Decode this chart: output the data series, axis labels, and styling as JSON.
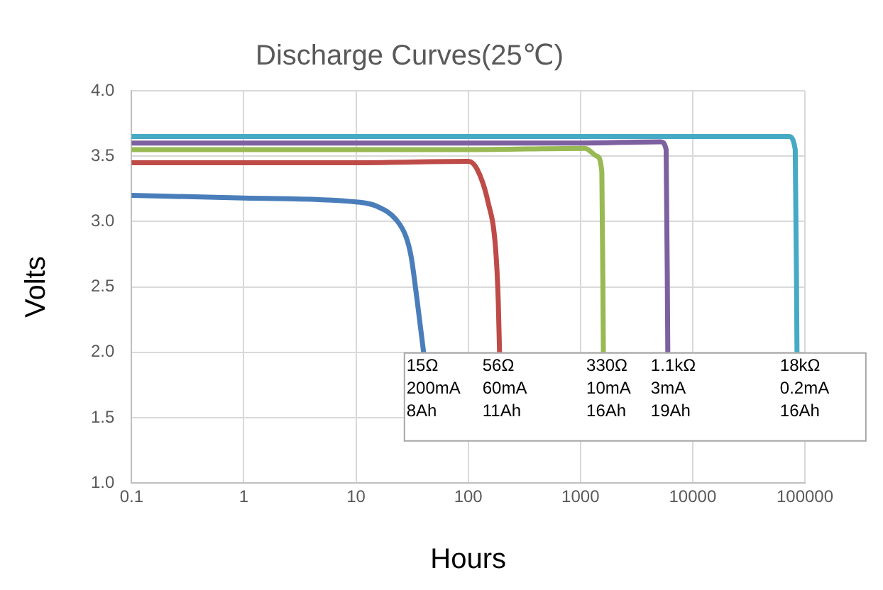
{
  "chart_data": {
    "type": "line",
    "title": "Discharge Curves(25℃)",
    "xlabel": "Hours",
    "ylabel": "Volts",
    "log": "x",
    "grid": true,
    "legend": false,
    "marker": "none",
    "line_style": "solid",
    "xlim": [
      0.1,
      100000
    ],
    "xticks": [
      0.1,
      1,
      10,
      100,
      1000,
      10000,
      100000
    ],
    "ylim": [
      1.0,
      4.0
    ],
    "yticks": [
      {
        "value": 1.0,
        "label": "1.0"
      },
      {
        "value": 1.5,
        "label": "1.5"
      },
      {
        "value": 2.0,
        "label": "2.0"
      },
      {
        "value": 2.5,
        "label": "2.5"
      },
      {
        "value": 3.0,
        "label": "3.0"
      },
      {
        "value": 3.5,
        "label": "3.5"
      },
      {
        "value": 4.0,
        "label": "4.0"
      }
    ],
    "series": [
      {
        "color": "#4a7ebb",
        "x": [
          0.1,
          1,
          10,
          15,
          23,
          28,
          31,
          35,
          40
        ],
        "values": [
          3.2,
          3.18,
          3.15,
          3.12,
          3.01,
          2.88,
          2.73,
          2.4,
          2.0
        ]
      },
      {
        "color": "#be4b48",
        "x": [
          0.1,
          10,
          100,
          120,
          150,
          175,
          185,
          190
        ],
        "values": [
          3.45,
          3.45,
          3.46,
          3.4,
          3.15,
          2.8,
          2.4,
          2.0
        ]
      },
      {
        "color": "#98b954",
        "x": [
          0.1,
          100,
          1100,
          1400,
          1550,
          1600
        ],
        "values": [
          3.55,
          3.55,
          3.56,
          3.5,
          3.38,
          2.0
        ]
      },
      {
        "color": "#7d60a0",
        "x": [
          0.1,
          1000,
          5200,
          5800,
          6000
        ],
        "values": [
          3.6,
          3.6,
          3.61,
          3.55,
          2.0
        ]
      },
      {
        "color": "#46aac5",
        "x": [
          0.1,
          10000,
          72000,
          82000,
          85000
        ],
        "values": [
          3.65,
          3.65,
          3.65,
          3.55,
          2.0
        ]
      }
    ],
    "annotations": [
      {
        "text": "15Ω\n200mA\n8Ah",
        "x": 40,
        "y": 2.0
      },
      {
        "text": "56Ω\n60mA\n11Ah",
        "x": 190,
        "y": 2.0
      },
      {
        "text": "330Ω\n10mA\n16Ah",
        "x": 1600,
        "y": 2.0
      },
      {
        "text": "1.1kΩ\n3mA\n19Ah",
        "x": 6000,
        "y": 2.0
      },
      {
        "text": "18kΩ\n0.2mA\n16Ah",
        "x": 85000,
        "y": 2.0
      }
    ]
  }
}
